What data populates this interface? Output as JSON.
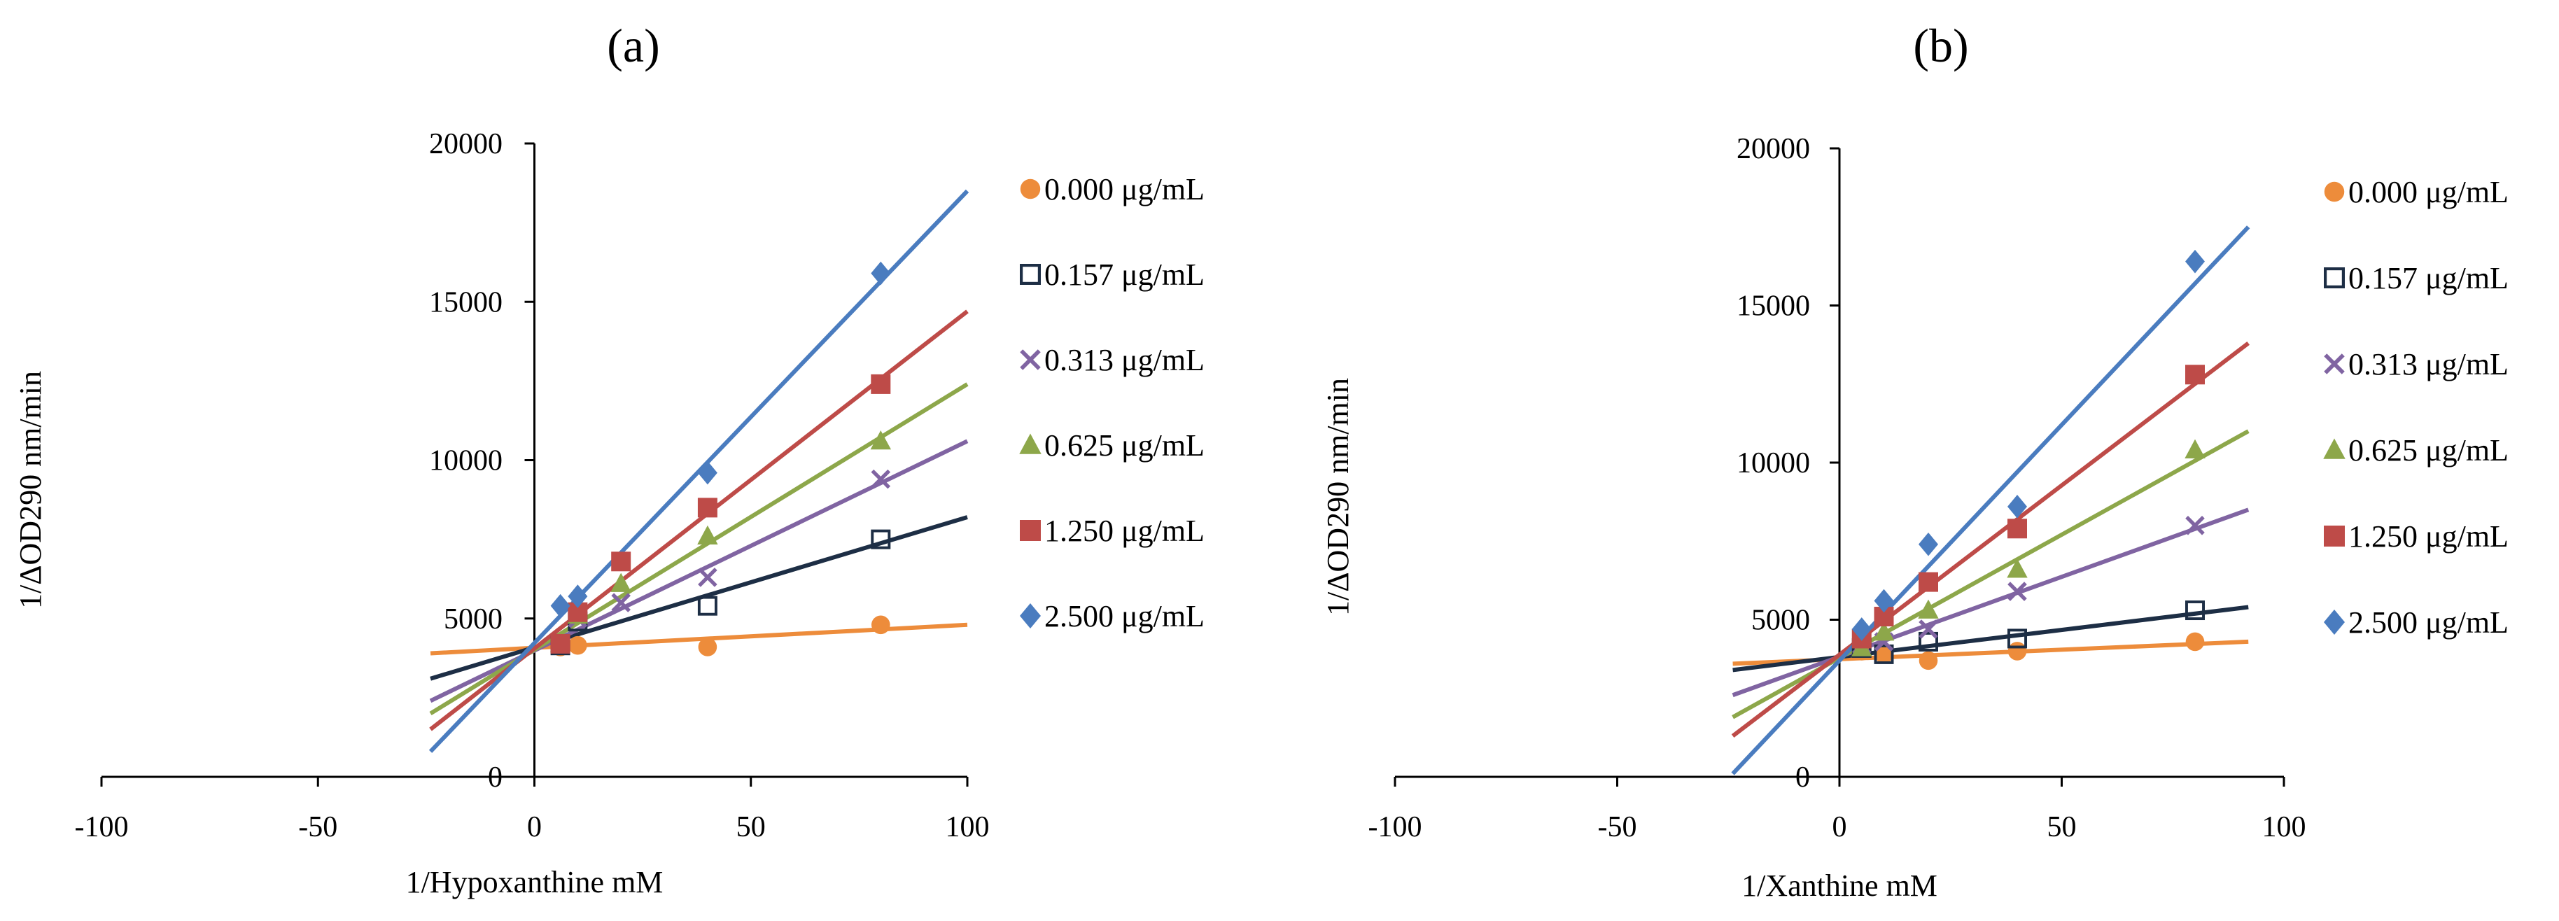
{
  "chart_data": [
    {
      "type": "scatter",
      "panel_label": "(a)",
      "xlabel": "1/Hypoxanthine mM",
      "ylabel": "1/ΔOD290 nm/min",
      "xlim": [
        -100,
        100
      ],
      "ylim": [
        0,
        20000
      ],
      "x_ticks": [
        -100,
        -50,
        0,
        50,
        100
      ],
      "y_ticks": [
        0,
        5000,
        10000,
        15000,
        20000
      ],
      "x_tick_labels": [
        "-100",
        "-50",
        "0",
        "50",
        "100"
      ],
      "y_tick_labels": [
        "0",
        "5000",
        "10000",
        "15000",
        "20000"
      ],
      "grid": false,
      "legend_position": "right",
      "series": [
        {
          "name": "0.000 μg/mL",
          "color": "#ED8C3B",
          "marker": "circle",
          "x": [
            6,
            10,
            40,
            80
          ],
          "y": [
            4100,
            4150,
            4100,
            4800
          ],
          "trendline": {
            "x": [
              -24,
              100
            ],
            "y": [
              3900,
              4800
            ]
          }
        },
        {
          "name": "0.157 μg/mL",
          "color": "#1D2E45",
          "marker": "square-open",
          "x": [
            6,
            10,
            40,
            80
          ],
          "y": [
            4150,
            4900,
            5400,
            7500
          ],
          "trendline": {
            "x": [
              -24,
              100
            ],
            "y": [
              3100,
              8200
            ]
          }
        },
        {
          "name": "0.313 μg/mL",
          "color": "#8064A2",
          "marker": "x",
          "x": [
            6,
            10,
            20,
            40,
            80
          ],
          "y": [
            4200,
            5000,
            5500,
            6300,
            9400
          ],
          "trendline": {
            "x": [
              -24,
              100
            ],
            "y": [
              2400,
              10600
            ]
          }
        },
        {
          "name": "0.625 μg/mL",
          "color": "#8DA74A",
          "marker": "triangle",
          "x": [
            6,
            10,
            20,
            40,
            80
          ],
          "y": [
            4200,
            5100,
            6100,
            7600,
            10600
          ],
          "trendline": {
            "x": [
              -24,
              100
            ],
            "y": [
              2000,
              12400
            ]
          }
        },
        {
          "name": "1.250 μg/mL",
          "color": "#BE4B48",
          "marker": "square",
          "x": [
            6,
            10,
            20,
            40,
            80
          ],
          "y": [
            4200,
            5200,
            6800,
            8500,
            12400
          ],
          "trendline": {
            "x": [
              -24,
              100
            ],
            "y": [
              1500,
              14700
            ]
          }
        },
        {
          "name": "2.500 μg/mL",
          "color": "#4A7CBF",
          "marker": "diamond",
          "x": [
            6,
            10,
            40,
            80
          ],
          "y": [
            5400,
            5700,
            9600,
            15900
          ],
          "trendline": {
            "x": [
              -24,
              100
            ],
            "y": [
              800,
              18500
            ]
          }
        }
      ]
    },
    {
      "type": "scatter",
      "panel_label": "(b)",
      "xlabel": "1/Xanthine mM",
      "ylabel": "1/ΔOD290 nm/min",
      "xlim": [
        -100,
        100
      ],
      "ylim": [
        0,
        20000
      ],
      "x_ticks": [
        -100,
        -50,
        0,
        50,
        100
      ],
      "y_ticks": [
        0,
        5000,
        10000,
        15000,
        20000
      ],
      "x_tick_labels": [
        "-100",
        "-50",
        "0",
        "50",
        "100"
      ],
      "y_tick_labels": [
        "0",
        "5000",
        "10000",
        "15000",
        "20000"
      ],
      "grid": false,
      "legend_position": "right",
      "series": [
        {
          "name": "0.000 μg/mL",
          "color": "#ED8C3B",
          "marker": "circle",
          "x": [
            5,
            10,
            20,
            40,
            80
          ],
          "y": [
            4000,
            3900,
            3700,
            4000,
            4300
          ],
          "trendline": {
            "x": [
              -24,
              92
            ],
            "y": [
              3600,
              4300
            ]
          }
        },
        {
          "name": "0.157 μg/mL",
          "color": "#1D2E45",
          "marker": "square-open",
          "x": [
            5,
            10,
            20,
            40,
            80
          ],
          "y": [
            4100,
            3900,
            4300,
            4400,
            5300
          ],
          "trendline": {
            "x": [
              -24,
              92
            ],
            "y": [
              3400,
              5400
            ]
          }
        },
        {
          "name": "0.313 μg/mL",
          "color": "#8064A2",
          "marker": "x",
          "x": [
            5,
            10,
            20,
            40,
            80
          ],
          "y": [
            4200,
            4300,
            4700,
            5900,
            8000
          ],
          "trendline": {
            "x": [
              -24,
              92
            ],
            "y": [
              2600,
              8500
            ]
          }
        },
        {
          "name": "0.625 μg/mL",
          "color": "#8DA74A",
          "marker": "triangle",
          "x": [
            5,
            10,
            20,
            40,
            80
          ],
          "y": [
            4100,
            4600,
            5300,
            6600,
            10400
          ],
          "trendline": {
            "x": [
              -24,
              92
            ],
            "y": [
              1900,
              11000
            ]
          }
        },
        {
          "name": "1.250 μg/mL",
          "color": "#BE4B48",
          "marker": "square",
          "x": [
            5,
            10,
            20,
            40,
            80
          ],
          "y": [
            4400,
            5100,
            6200,
            7900,
            12800
          ],
          "trendline": {
            "x": [
              -24,
              92
            ],
            "y": [
              1300,
              13800
            ]
          }
        },
        {
          "name": "2.500 μg/mL",
          "color": "#4A7CBF",
          "marker": "diamond",
          "x": [
            5,
            10,
            20,
            40,
            80
          ],
          "y": [
            4700,
            5600,
            7400,
            8600,
            16400
          ],
          "trendline": {
            "x": [
              -24,
              92
            ],
            "y": [
              100,
              17500
            ]
          }
        }
      ]
    }
  ]
}
